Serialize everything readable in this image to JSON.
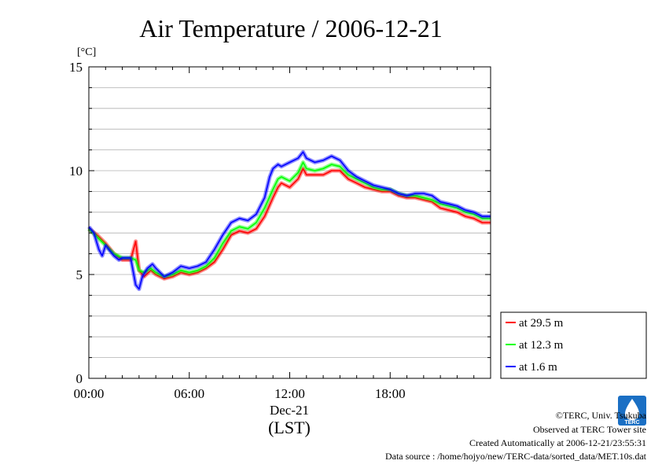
{
  "chart_data": {
    "type": "line",
    "title": "Air Temperature / 2006-12-21",
    "y_unit": "[°C]",
    "ylim": [
      0,
      15
    ],
    "y_ticks": [
      0,
      5,
      10,
      15
    ],
    "xlim": [
      0,
      24
    ],
    "x_ticks": [
      {
        "value": 0,
        "label": "00:00"
      },
      {
        "value": 6,
        "label": "06:00"
      },
      {
        "value": 12,
        "label": "12:00"
      },
      {
        "value": 18,
        "label": "18:00"
      }
    ],
    "x_date_label": "Dec-21",
    "x_axis_label": "(LST)",
    "grid": true,
    "legend_position": "right-bottom, outside plot",
    "series": [
      {
        "name": "at 29.5 m",
        "color": "#ff0000",
        "points": [
          [
            0,
            7.2
          ],
          [
            0.5,
            6.9
          ],
          [
            1.0,
            6.5
          ],
          [
            1.5,
            6.0
          ],
          [
            2.0,
            5.7
          ],
          [
            2.5,
            5.7
          ],
          [
            2.8,
            6.6
          ],
          [
            3.0,
            5.2
          ],
          [
            3.3,
            4.9
          ],
          [
            3.7,
            5.2
          ],
          [
            4.0,
            5.0
          ],
          [
            4.5,
            4.8
          ],
          [
            5.0,
            4.9
          ],
          [
            5.5,
            5.1
          ],
          [
            6.0,
            5.0
          ],
          [
            6.5,
            5.1
          ],
          [
            7.0,
            5.3
          ],
          [
            7.5,
            5.6
          ],
          [
            8.0,
            6.2
          ],
          [
            8.5,
            6.9
          ],
          [
            9.0,
            7.1
          ],
          [
            9.5,
            7.0
          ],
          [
            10.0,
            7.2
          ],
          [
            10.5,
            7.8
          ],
          [
            11.0,
            8.7
          ],
          [
            11.3,
            9.2
          ],
          [
            11.5,
            9.4
          ],
          [
            12.0,
            9.2
          ],
          [
            12.5,
            9.6
          ],
          [
            12.8,
            10.1
          ],
          [
            13.0,
            9.8
          ],
          [
            13.5,
            9.8
          ],
          [
            14.0,
            9.8
          ],
          [
            14.5,
            10.0
          ],
          [
            15.0,
            10.0
          ],
          [
            15.5,
            9.6
          ],
          [
            16.0,
            9.4
          ],
          [
            16.5,
            9.2
          ],
          [
            17.0,
            9.1
          ],
          [
            17.5,
            9.0
          ],
          [
            18.0,
            9.0
          ],
          [
            18.5,
            8.8
          ],
          [
            19.0,
            8.7
          ],
          [
            19.5,
            8.7
          ],
          [
            20.0,
            8.6
          ],
          [
            20.5,
            8.5
          ],
          [
            21.0,
            8.2
          ],
          [
            21.5,
            8.1
          ],
          [
            22.0,
            8.0
          ],
          [
            22.5,
            7.8
          ],
          [
            23.0,
            7.7
          ],
          [
            23.5,
            7.5
          ],
          [
            24.0,
            7.5
          ]
        ]
      },
      {
        "name": "at 12.3 m",
        "color": "#00ff00",
        "points": [
          [
            0,
            7.2
          ],
          [
            0.5,
            6.8
          ],
          [
            1.0,
            6.4
          ],
          [
            1.5,
            6.0
          ],
          [
            2.0,
            5.8
          ],
          [
            2.5,
            5.8
          ],
          [
            2.8,
            5.7
          ],
          [
            3.0,
            5.2
          ],
          [
            3.3,
            5.1
          ],
          [
            3.7,
            5.3
          ],
          [
            4.0,
            5.1
          ],
          [
            4.5,
            4.9
          ],
          [
            5.0,
            5.0
          ],
          [
            5.5,
            5.2
          ],
          [
            6.0,
            5.1
          ],
          [
            6.5,
            5.2
          ],
          [
            7.0,
            5.4
          ],
          [
            7.5,
            5.8
          ],
          [
            8.0,
            6.5
          ],
          [
            8.5,
            7.1
          ],
          [
            9.0,
            7.3
          ],
          [
            9.5,
            7.2
          ],
          [
            10.0,
            7.5
          ],
          [
            10.5,
            8.2
          ],
          [
            11.0,
            9.1
          ],
          [
            11.3,
            9.6
          ],
          [
            11.5,
            9.7
          ],
          [
            12.0,
            9.5
          ],
          [
            12.5,
            9.9
          ],
          [
            12.8,
            10.4
          ],
          [
            13.0,
            10.1
          ],
          [
            13.5,
            10.0
          ],
          [
            14.0,
            10.1
          ],
          [
            14.5,
            10.3
          ],
          [
            15.0,
            10.2
          ],
          [
            15.5,
            9.8
          ],
          [
            16.0,
            9.6
          ],
          [
            16.5,
            9.4
          ],
          [
            17.0,
            9.2
          ],
          [
            17.5,
            9.1
          ],
          [
            18.0,
            9.1
          ],
          [
            18.5,
            8.9
          ],
          [
            19.0,
            8.8
          ],
          [
            19.5,
            8.8
          ],
          [
            20.0,
            8.7
          ],
          [
            20.5,
            8.6
          ],
          [
            21.0,
            8.4
          ],
          [
            21.5,
            8.3
          ],
          [
            22.0,
            8.2
          ],
          [
            22.5,
            8.0
          ],
          [
            23.0,
            7.9
          ],
          [
            23.5,
            7.7
          ],
          [
            24.0,
            7.7
          ]
        ]
      },
      {
        "name": "at 1.6 m",
        "color": "#0000ff",
        "points": [
          [
            0,
            7.3
          ],
          [
            0.3,
            7.0
          ],
          [
            0.6,
            6.2
          ],
          [
            0.8,
            5.9
          ],
          [
            1.0,
            6.4
          ],
          [
            1.3,
            6.1
          ],
          [
            1.5,
            5.9
          ],
          [
            1.8,
            5.7
          ],
          [
            2.0,
            5.8
          ],
          [
            2.5,
            5.8
          ],
          [
            2.8,
            4.5
          ],
          [
            3.0,
            4.3
          ],
          [
            3.2,
            4.9
          ],
          [
            3.5,
            5.3
          ],
          [
            3.8,
            5.5
          ],
          [
            4.0,
            5.3
          ],
          [
            4.5,
            4.9
          ],
          [
            5.0,
            5.1
          ],
          [
            5.5,
            5.4
          ],
          [
            6.0,
            5.3
          ],
          [
            6.5,
            5.4
          ],
          [
            7.0,
            5.6
          ],
          [
            7.5,
            6.2
          ],
          [
            8.0,
            6.9
          ],
          [
            8.5,
            7.5
          ],
          [
            9.0,
            7.7
          ],
          [
            9.5,
            7.6
          ],
          [
            10.0,
            7.9
          ],
          [
            10.5,
            8.7
          ],
          [
            10.8,
            9.7
          ],
          [
            11.0,
            10.1
          ],
          [
            11.3,
            10.3
          ],
          [
            11.5,
            10.2
          ],
          [
            12.0,
            10.4
          ],
          [
            12.5,
            10.6
          ],
          [
            12.8,
            10.9
          ],
          [
            13.0,
            10.6
          ],
          [
            13.5,
            10.4
          ],
          [
            14.0,
            10.5
          ],
          [
            14.5,
            10.7
          ],
          [
            15.0,
            10.5
          ],
          [
            15.5,
            10.0
          ],
          [
            16.0,
            9.7
          ],
          [
            16.5,
            9.5
          ],
          [
            17.0,
            9.3
          ],
          [
            17.5,
            9.2
          ],
          [
            18.0,
            9.1
          ],
          [
            18.5,
            8.9
          ],
          [
            19.0,
            8.8
          ],
          [
            19.5,
            8.9
          ],
          [
            20.0,
            8.9
          ],
          [
            20.5,
            8.8
          ],
          [
            21.0,
            8.5
          ],
          [
            21.5,
            8.4
          ],
          [
            22.0,
            8.3
          ],
          [
            22.5,
            8.1
          ],
          [
            23.0,
            8.0
          ],
          [
            23.5,
            7.8
          ],
          [
            24.0,
            7.8
          ]
        ]
      }
    ]
  },
  "credits": {
    "copyright": "©TERC, Univ. Tsukuba",
    "observed": "Observed at TERC Tower site",
    "created": "Created Automatically at 2006-12-21/23:55:31",
    "source": "Data source : /home/hojyo/new/TERC-data/sorted_data/MET.10s.dat",
    "logo_text": "TERC",
    "logo_color": "#1a6fc4"
  }
}
